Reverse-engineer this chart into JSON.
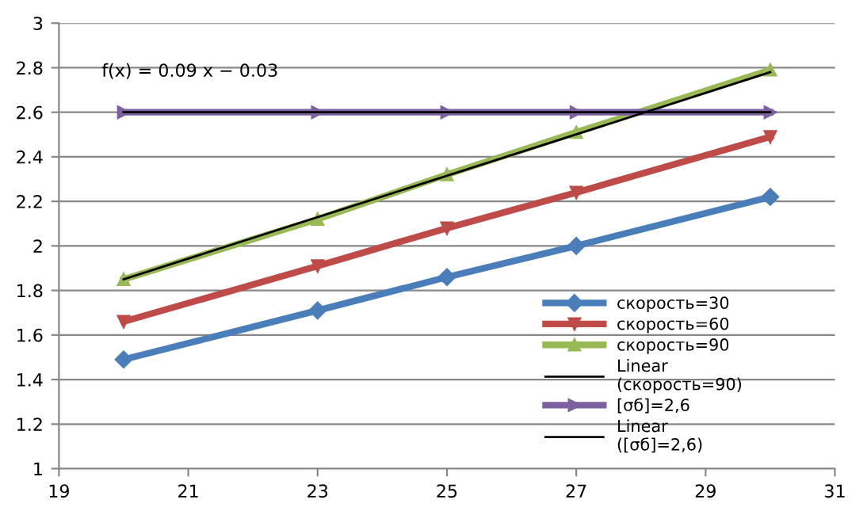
{
  "chart_data": {
    "type": "line",
    "series": [
      {
        "name": "скорость=30",
        "color": "#4a7ebb",
        "marker": "diamond",
        "x": [
          20,
          23,
          25,
          27,
          30
        ],
        "values": [
          1.49,
          1.71,
          1.86,
          2.0,
          2.22
        ]
      },
      {
        "name": "скорость=60",
        "color": "#be4b48",
        "marker": "triangle_down",
        "x": [
          20,
          23,
          25,
          27,
          30
        ],
        "values": [
          1.66,
          1.91,
          2.08,
          2.24,
          2.49
        ]
      },
      {
        "name": "скорость=90",
        "color": "#98b954",
        "marker": "triangle",
        "x": [
          20,
          23,
          25,
          27,
          30
        ],
        "values": [
          1.85,
          2.12,
          2.32,
          2.51,
          2.79
        ]
      },
      {
        "name": "Linear\n(скорость=90)",
        "color": "#000000",
        "marker": "none",
        "x": [
          20,
          30
        ],
        "values": [
          1.85,
          2.78
        ]
      },
      {
        "name": "[σб]=2,6",
        "color": "#7d60a0",
        "marker": "triangle_right",
        "x": [
          20,
          23,
          25,
          27,
          30
        ],
        "values": [
          2.6,
          2.6,
          2.6,
          2.6,
          2.6
        ]
      },
      {
        "name": "Linear\n([σб]=2,6)",
        "color": "#000000",
        "marker": "none",
        "x": [
          20,
          30
        ],
        "values": [
          2.6,
          2.6
        ]
      }
    ],
    "annotations": [
      "f(x) = 0.09 x − 0.03"
    ],
    "xlim": [
      19,
      31
    ],
    "xticks": [
      19,
      21,
      23,
      25,
      27,
      29,
      31
    ],
    "ylim": [
      1,
      3
    ],
    "yticks": [
      1,
      {
        "value": 1.2,
        "label": "1.2"
      },
      {
        "value": 1.4,
        "label": "1.4"
      },
      {
        "value": 1.6,
        "label": "1.6"
      },
      {
        "value": 1.8,
        "label": "1.8"
      },
      2,
      {
        "value": 2.2,
        "label": "2.2"
      },
      {
        "value": 2.4,
        "label": "2.4"
      },
      {
        "value": 2.6,
        "label": "2.6"
      },
      {
        "value": 2.8,
        "label": "2.8"
      },
      3
    ],
    "grid": "y",
    "legend": "lower right",
    "line_style": "solid"
  }
}
